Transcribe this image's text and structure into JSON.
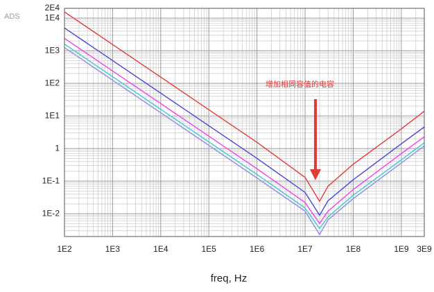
{
  "chart_data": {
    "type": "line",
    "logo_text": "ADS",
    "x_label": "freq, Hz",
    "annotation": "增加相同容值的电容",
    "x": [
      100,
      1000,
      10000,
      100000,
      1000000,
      10000000,
      20000000,
      30000000,
      100000000,
      1000000000,
      3000000000
    ],
    "series": [
      {
        "color": "#e03a3a",
        "values": [
          15500,
          1550,
          155,
          15.5,
          1.55,
          0.13,
          0.024,
          0.07,
          0.33,
          4,
          14
        ]
      },
      {
        "color": "#4646d8",
        "values": [
          5000,
          500,
          50,
          5,
          0.5,
          0.045,
          0.009,
          0.025,
          0.11,
          1.4,
          4.6
        ]
      },
      {
        "color": "#f040f0",
        "values": [
          2400,
          240,
          24,
          2.4,
          0.24,
          0.022,
          0.005,
          0.012,
          0.055,
          0.7,
          2.3
        ]
      },
      {
        "color": "#40c8d0",
        "values": [
          1600,
          160,
          16,
          1.6,
          0.16,
          0.015,
          0.0035,
          0.008,
          0.037,
          0.45,
          1.5
        ]
      },
      {
        "color": "#8c8ce0",
        "values": [
          1250,
          125,
          12.5,
          1.25,
          0.125,
          0.012,
          0.0023,
          0.0065,
          0.029,
          0.36,
          1.2
        ]
      }
    ],
    "xscale": "log",
    "yscale": "log",
    "grid": true,
    "xlim": [
      100,
      3000000000
    ],
    "ylim": [
      0.002,
      20000
    ],
    "xticks": [
      {
        "value": 100,
        "label": "1E2"
      },
      {
        "value": 1000,
        "label": "1E3"
      },
      {
        "value": 10000,
        "label": "1E4"
      },
      {
        "value": 100000,
        "label": "1E5"
      },
      {
        "value": 1000000,
        "label": "1E6"
      },
      {
        "value": 10000000,
        "label": "1E7"
      },
      {
        "value": 100000000,
        "label": "1E8"
      },
      {
        "value": 1000000000,
        "label": "1E9"
      },
      {
        "value": 3000000000,
        "label": "3E9"
      }
    ],
    "yticks": [
      {
        "value": 0.01,
        "label": "1E-2"
      },
      {
        "value": 0.1,
        "label": "1E-1"
      },
      1,
      {
        "value": 10,
        "label": "1E1"
      },
      {
        "value": 100,
        "label": "1E2"
      },
      {
        "value": 1000,
        "label": "1E3"
      },
      {
        "value": 10000,
        "label": "1E4"
      },
      {
        "value": 20000,
        "label": "2E4"
      }
    ]
  }
}
